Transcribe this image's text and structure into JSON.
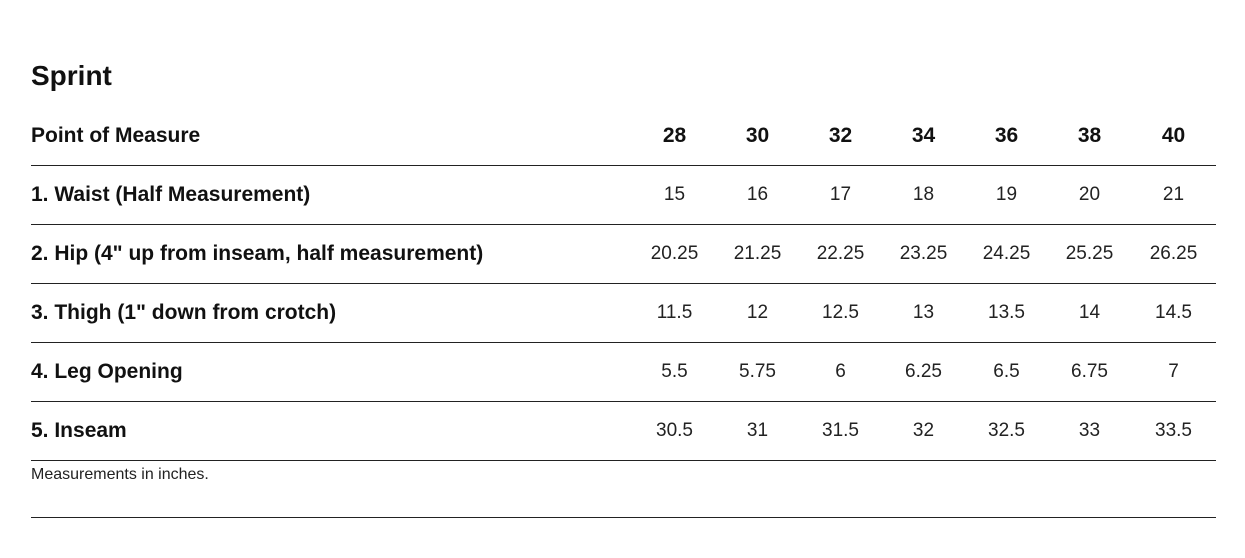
{
  "title": "Sprint",
  "table": {
    "header": [
      "Point of Measure",
      "28",
      "30",
      "32",
      "34",
      "36",
      "38",
      "40"
    ],
    "rows": [
      [
        "1. Waist (Half Measurement)",
        "15",
        "16",
        "17",
        "18",
        "19",
        "20",
        "21"
      ],
      [
        "2. Hip (4\" up from inseam, half measurement)",
        "20.25",
        "21.25",
        "22.25",
        "23.25",
        "24.25",
        "25.25",
        "26.25"
      ],
      [
        "3. Thigh (1\" down from crotch)",
        "11.5",
        "12",
        "12.5",
        "13",
        "13.5",
        "14",
        "14.5"
      ],
      [
        "4. Leg Opening",
        "5.5",
        "5.75",
        "6",
        "6.25",
        "6.5",
        "6.75",
        "7"
      ],
      [
        "5. Inseam",
        "30.5",
        "31",
        "31.5",
        "32",
        "32.5",
        "33",
        "33.5"
      ]
    ]
  },
  "note": "Measurements in inches."
}
